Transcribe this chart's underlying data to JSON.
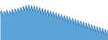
{
  "values": [
    57.5,
    59.2,
    56.0,
    58.8,
    57.0,
    59.5,
    56.5,
    59.0,
    57.2,
    59.8,
    56.8,
    60.2,
    57.5,
    60.5,
    58.0,
    61.0,
    58.5,
    61.5,
    59.0,
    62.0,
    59.2,
    62.2,
    59.0,
    62.0,
    58.8,
    61.8,
    58.5,
    61.5,
    58.0,
    61.0,
    57.5,
    60.5,
    57.0,
    60.0,
    56.5,
    59.5,
    56.0,
    59.0,
    55.5,
    58.5,
    55.0,
    58.0,
    54.5,
    57.5,
    54.0,
    57.0,
    53.5,
    56.5,
    53.0,
    56.0,
    52.5,
    55.5,
    52.0,
    55.0,
    51.5,
    54.5,
    51.0,
    54.0,
    50.5,
    53.5,
    50.0,
    53.0,
    49.5,
    52.5,
    49.0,
    52.0,
    48.5,
    51.5,
    48.0,
    51.0,
    47.5,
    50.5,
    47.0,
    50.0,
    46.5,
    49.5,
    46.0,
    49.0,
    45.5,
    48.5
  ],
  "line_color": "#2b7bba",
  "fill_color": "#5ba3d9",
  "background_color": "#ffffff",
  "ylim_min": 43.0,
  "ylim_max": 65.0
}
